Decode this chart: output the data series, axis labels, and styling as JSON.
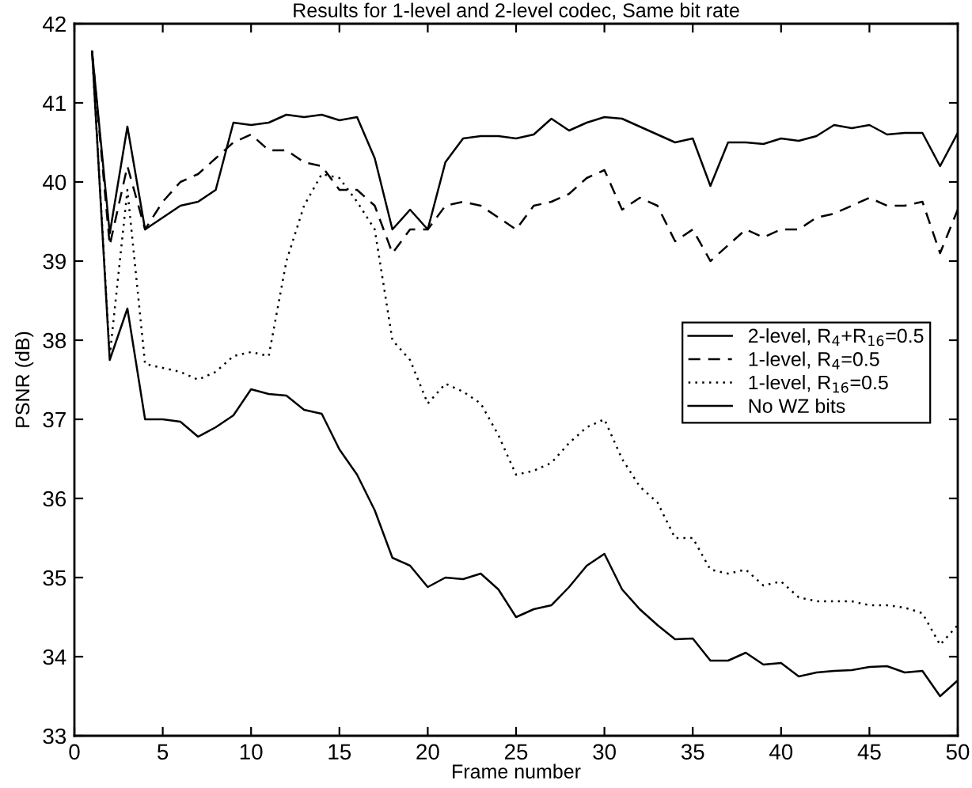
{
  "chart_data": {
    "type": "line",
    "title": "Results for 1-level and 2-level codec, Same bit rate",
    "xlabel": "Frame number",
    "ylabel": "PSNR (dB)",
    "x": [
      1,
      2,
      3,
      4,
      5,
      6,
      7,
      8,
      9,
      10,
      11,
      12,
      13,
      14,
      15,
      16,
      17,
      18,
      19,
      20,
      21,
      22,
      23,
      24,
      25,
      26,
      27,
      28,
      29,
      30,
      31,
      32,
      33,
      34,
      35,
      36,
      37,
      38,
      39,
      40,
      41,
      42,
      43,
      44,
      45,
      46,
      47,
      48,
      49,
      50
    ],
    "series": [
      {
        "name": "2-level, R$_{4}$+R$_{16}$=0.5",
        "color": "#000000",
        "line_style": "solid",
        "values": [
          41.65,
          39.35,
          40.7,
          39.4,
          39.55,
          39.7,
          39.75,
          39.9,
          40.75,
          40.72,
          40.75,
          40.85,
          40.82,
          40.85,
          40.78,
          40.82,
          40.3,
          39.4,
          39.65,
          39.4,
          40.25,
          40.55,
          40.58,
          40.58,
          40.55,
          40.6,
          40.8,
          40.65,
          40.75,
          40.82,
          40.8,
          40.7,
          40.6,
          40.5,
          40.55,
          39.95,
          40.5,
          40.5,
          40.48,
          40.55,
          40.52,
          40.58,
          40.72,
          40.68,
          40.72,
          40.6,
          40.62,
          40.62,
          40.2,
          40.62
        ]
      },
      {
        "name": "1-level, R$_{4}$=0.5",
        "color": "#000000",
        "line_style": "dashed",
        "values": [
          41.65,
          39.2,
          40.2,
          39.4,
          39.75,
          40.0,
          40.1,
          40.3,
          40.5,
          40.6,
          40.4,
          40.4,
          40.25,
          40.2,
          39.9,
          39.9,
          39.7,
          39.1,
          39.4,
          39.4,
          39.7,
          39.75,
          39.7,
          39.55,
          39.4,
          39.7,
          39.75,
          39.85,
          40.05,
          40.15,
          39.65,
          39.8,
          39.7,
          39.25,
          39.4,
          39.0,
          39.2,
          39.4,
          39.3,
          39.4,
          39.4,
          39.55,
          39.6,
          39.7,
          39.8,
          39.7,
          39.7,
          39.75,
          39.1,
          39.65
        ]
      },
      {
        "name": "1-level, R$_{16}$=0.5",
        "color": "#000000",
        "line_style": "dotted",
        "values": [
          41.65,
          37.8,
          39.9,
          37.7,
          37.65,
          37.6,
          37.5,
          37.6,
          37.8,
          37.85,
          37.8,
          39.0,
          39.7,
          40.1,
          40.05,
          39.75,
          39.4,
          38.0,
          37.75,
          37.2,
          37.45,
          37.35,
          37.2,
          36.8,
          36.3,
          36.35,
          36.45,
          36.7,
          36.9,
          37.0,
          36.5,
          36.15,
          35.95,
          35.5,
          35.5,
          35.1,
          35.05,
          35.1,
          34.9,
          34.95,
          34.75,
          34.7,
          34.7,
          34.7,
          34.65,
          34.65,
          34.62,
          34.55,
          34.15,
          34.4
        ]
      },
      {
        "name": "No WZ bits",
        "color": "#000000",
        "line_style": "solid",
        "values": [
          41.65,
          37.75,
          38.4,
          37.0,
          37.0,
          36.97,
          36.78,
          36.9,
          37.05,
          37.38,
          37.32,
          37.3,
          37.12,
          37.07,
          36.62,
          36.3,
          35.85,
          35.25,
          35.15,
          34.88,
          35.0,
          34.98,
          35.05,
          34.85,
          34.5,
          34.6,
          34.65,
          34.88,
          35.15,
          35.3,
          34.85,
          34.6,
          34.4,
          34.22,
          34.23,
          33.95,
          33.95,
          34.05,
          33.9,
          33.92,
          33.75,
          33.8,
          33.82,
          33.83,
          33.87,
          33.88,
          33.8,
          33.82,
          33.5,
          33.7
        ]
      }
    ],
    "xlim": [
      0,
      50
    ],
    "xticks": [
      0,
      5,
      10,
      15,
      20,
      25,
      30,
      35,
      40,
      45,
      50
    ],
    "ylim": [
      33,
      42
    ],
    "yticks": [
      33,
      34,
      35,
      36,
      37,
      38,
      39,
      40,
      41,
      42
    ],
    "grid": false,
    "legend": "center right",
    "marker": "none"
  }
}
